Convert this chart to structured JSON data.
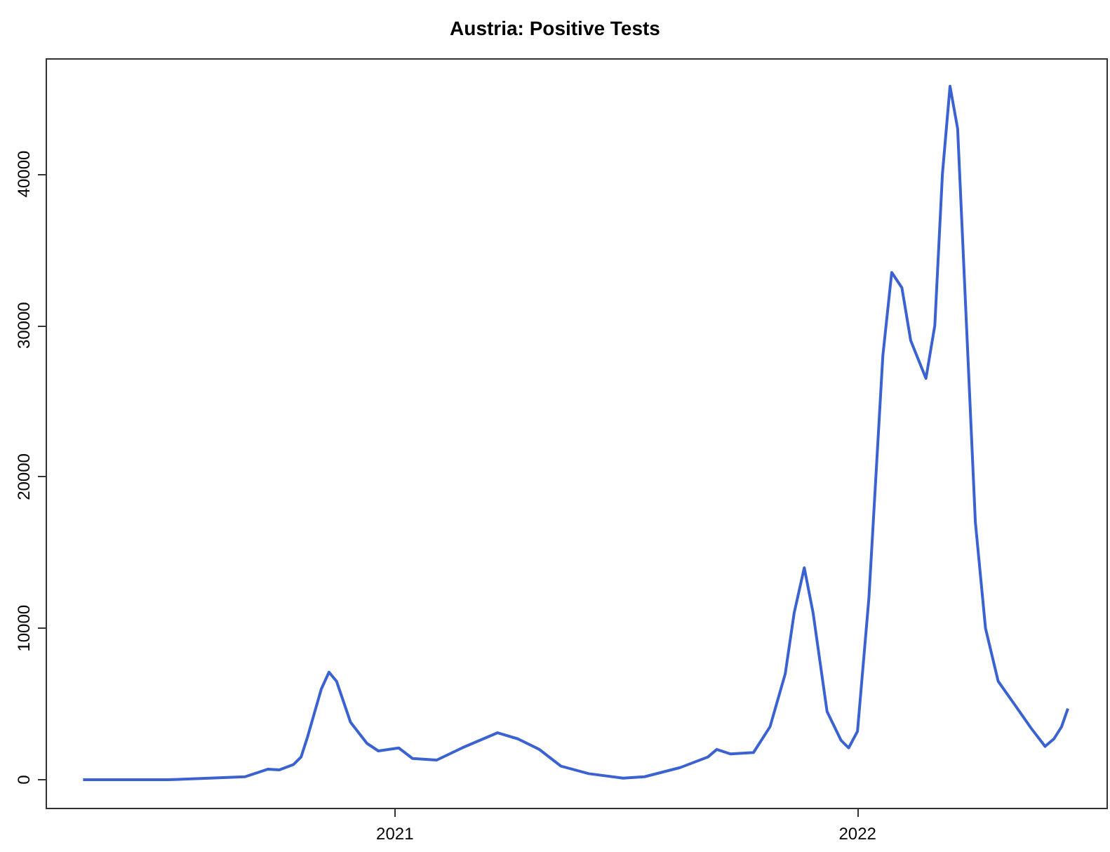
{
  "chart_data": {
    "type": "line",
    "title": "Austria: Positive Tests",
    "x": [
      "2020-04-30",
      "2020-07-06",
      "2020-08-08",
      "2020-09-05",
      "2020-09-16",
      "2020-09-23",
      "2020-10-02",
      "2020-10-13",
      "2020-10-19",
      "2020-10-24",
      "2020-11-04",
      "2020-11-10",
      "2020-11-16",
      "2020-11-27",
      "2020-12-10",
      "2020-12-19",
      "2021-01-04",
      "2021-01-15",
      "2021-02-03",
      "2021-02-23",
      "2021-03-23",
      "2021-04-08",
      "2021-04-25",
      "2021-05-12",
      "2021-06-03",
      "2021-06-30",
      "2021-07-17",
      "2021-08-14",
      "2021-09-05",
      "2021-09-12",
      "2021-09-23",
      "2021-10-11",
      "2021-10-24",
      "2021-11-05",
      "2021-11-12",
      "2021-11-20",
      "2021-11-27",
      "2021-12-08",
      "2021-12-19",
      "2021-12-25",
      "2022-01-01",
      "2022-01-10",
      "2022-01-21",
      "2022-01-28",
      "2022-02-05",
      "2022-02-12",
      "2022-02-24",
      "2022-03-03",
      "2022-03-09",
      "2022-03-15",
      "2022-03-21",
      "2022-03-28",
      "2022-04-04",
      "2022-04-12",
      "2022-04-22",
      "2022-05-03",
      "2022-05-18",
      "2022-05-29",
      "2022-06-05",
      "2022-06-11",
      "2022-06-16"
    ],
    "series": [
      {
        "color": "#3a62d0",
        "values": [
          0,
          0,
          100,
          200,
          500,
          700,
          650,
          1000,
          1500,
          2800,
          6000,
          7100,
          6500,
          3800,
          2400,
          1900,
          2100,
          1400,
          1300,
          2100,
          3100,
          2700,
          2000,
          900,
          400,
          100,
          200,
          800,
          1500,
          2000,
          1700,
          1800,
          3500,
          7000,
          11000,
          14000,
          11000,
          4500,
          2600,
          2100,
          3200,
          12000,
          28000,
          33500,
          32500,
          29000,
          26500,
          30000,
          40000,
          45800,
          43000,
          30000,
          17000,
          10000,
          6500,
          5200,
          3400,
          2200,
          2700,
          3500,
          4700
        ]
      }
    ],
    "xlim": [
      "2020-04-01",
      "2022-07-17"
    ],
    "xticks": [
      {
        "value": "2021-01-01",
        "label": "2021"
      },
      {
        "value": "2022-01-01",
        "label": "2022"
      }
    ],
    "ylim": [
      -1900,
      47600
    ],
    "yticks": [
      0,
      10000,
      20000,
      30000,
      40000
    ],
    "grid": false,
    "marker": "none",
    "line_style": "solid"
  }
}
